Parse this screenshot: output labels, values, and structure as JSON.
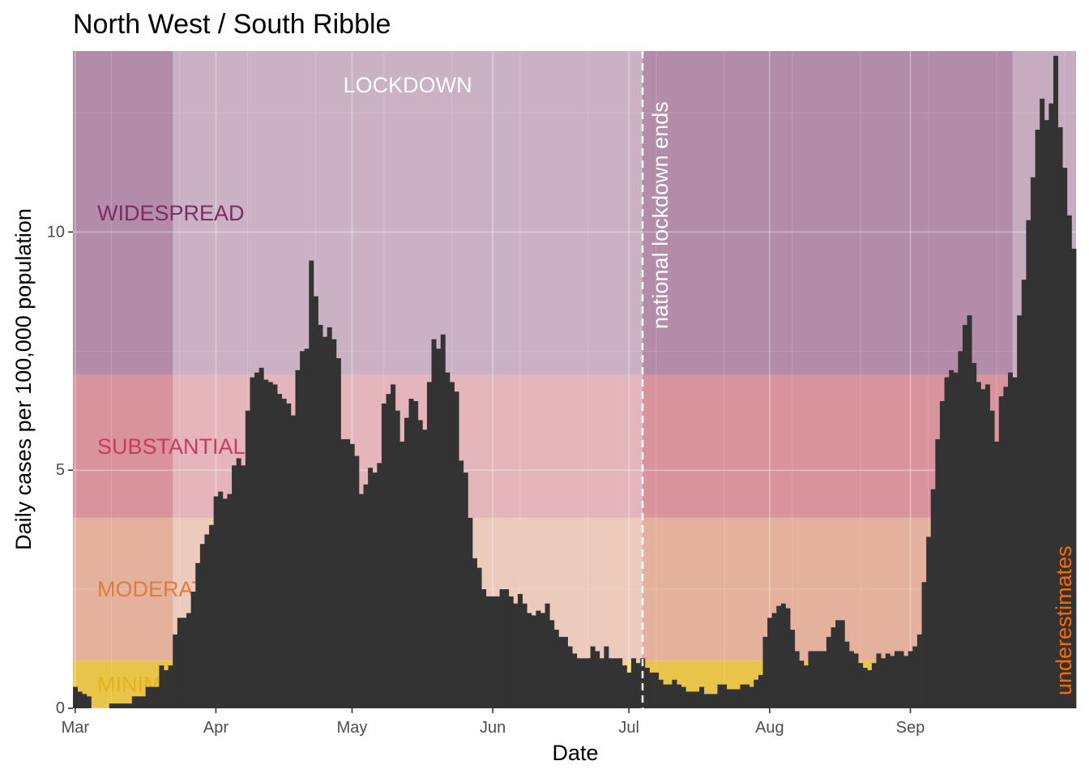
{
  "chart_data": {
    "type": "bar",
    "title": "North West / South Ribble",
    "xlabel": "Date",
    "ylabel": "Daily cases per 100,000 population",
    "x_start": "2020-03-01",
    "x_range": [
      "2020-03-01",
      "2020-09-28"
    ],
    "ylim": [
      0,
      13.8
    ],
    "y_ticks": [
      0,
      5,
      10
    ],
    "x_ticks": [
      {
        "label": "Mar",
        "date": "2020-03-01"
      },
      {
        "label": "Apr",
        "date": "2020-04-01"
      },
      {
        "label": "May",
        "date": "2020-05-01"
      },
      {
        "label": "Jun",
        "date": "2020-06-01"
      },
      {
        "label": "Jul",
        "date": "2020-07-01"
      },
      {
        "label": "Aug",
        "date": "2020-08-01"
      },
      {
        "label": "Sep",
        "date": "2020-09-01"
      }
    ],
    "grid": true,
    "bands": [
      {
        "label": "MINIMAL",
        "from": 0,
        "to": 1,
        "color": "#e8c44a",
        "text_color": "#e3b21c"
      },
      {
        "label": "MODERATE",
        "from": 1,
        "to": 4,
        "color": "#e4b29c",
        "text_color": "#e07b3e"
      },
      {
        "label": "SUBSTANTIAL",
        "from": 4,
        "to": 7,
        "color": "#d9939d",
        "text_color": "#c93a5b"
      },
      {
        "label": "WIDESPREAD",
        "from": 7,
        "to": 13.8,
        "color": "#b28ca8",
        "text_color": "#7c2d62"
      }
    ],
    "lockdown": {
      "label": "LOCKDOWN",
      "from": "2020-03-23",
      "to": "2020-07-04"
    },
    "lockdown_end": {
      "label": "national lockdown ends",
      "date": "2020-07-04"
    },
    "underestimate": {
      "label": "underestimates",
      "from": "2020-09-24",
      "color": "#ff6a00"
    },
    "values": [
      0.45,
      0.35,
      0.3,
      0.25,
      0,
      0,
      0,
      0,
      0.1,
      0.1,
      0.1,
      0.1,
      0.1,
      0.25,
      0.25,
      0.25,
      0.45,
      0.45,
      0.45,
      0.9,
      0.8,
      0.9,
      1.55,
      1.9,
      1.9,
      2.0,
      2.45,
      3.05,
      3.45,
      3.65,
      3.85,
      4.45,
      4.55,
      4.4,
      4.5,
      5.1,
      5.25,
      5.1,
      6.25,
      6.95,
      7.05,
      7.15,
      6.9,
      6.85,
      6.8,
      6.6,
      6.5,
      6.4,
      6.15,
      7.1,
      7.5,
      7.55,
      9.4,
      8.65,
      8.05,
      7.8,
      8.0,
      7.75,
      7.35,
      5.65,
      5.65,
      5.55,
      5.3,
      4.5,
      4.7,
      5.05,
      4.95,
      5.15,
      6.4,
      6.6,
      6.8,
      6.25,
      5.6,
      6.1,
      6.5,
      6.45,
      6.05,
      5.85,
      6.85,
      7.75,
      7.55,
      7.85,
      7.05,
      6.85,
      6.65,
      5.2,
      4.95,
      4.0,
      3.15,
      2.95,
      2.5,
      2.35,
      2.35,
      2.35,
      2.5,
      2.5,
      2.35,
      2.2,
      2.4,
      2.2,
      2.0,
      1.95,
      2.05,
      2.0,
      2.2,
      1.85,
      1.65,
      1.5,
      1.5,
      1.3,
      1.15,
      1.05,
      1.05,
      1.05,
      1.3,
      1.2,
      1.05,
      1.3,
      1.05,
      1.05,
      1.05,
      0.9,
      0.75,
      1.05,
      0.95,
      1.05,
      0.85,
      0.75,
      0.75,
      0.6,
      0.5,
      0.5,
      0.6,
      0.5,
      0.45,
      0.35,
      0.35,
      0.35,
      0.45,
      0.3,
      0.3,
      0.3,
      0.5,
      0.5,
      0.4,
      0.4,
      0.4,
      0.5,
      0.5,
      0.45,
      0.6,
      0.7,
      1.5,
      1.9,
      2.0,
      2.15,
      2.2,
      2.1,
      1.65,
      1.2,
      1.0,
      0.9,
      1.2,
      1.2,
      1.2,
      1.2,
      1.5,
      1.7,
      1.85,
      1.85,
      1.4,
      1.2,
      1.15,
      0.95,
      0.85,
      0.8,
      0.95,
      1.15,
      1.05,
      1.15,
      1.1,
      1.2,
      1.2,
      1.1,
      1.2,
      1.3,
      1.55,
      2.65,
      3.6,
      4.6,
      5.65,
      6.45,
      6.95,
      7.1,
      7.05,
      7.5,
      8.05,
      8.25,
      7.25,
      6.85,
      6.7,
      6.8,
      6.25,
      5.6,
      6.55,
      6.75,
      7.05,
      6.95,
      8.25,
      9.0,
      10.25,
      11.15,
      12.15,
      12.8,
      12.35,
      12.7,
      13.7,
      12.2,
      11.35,
      10.35,
      9.65
    ]
  }
}
